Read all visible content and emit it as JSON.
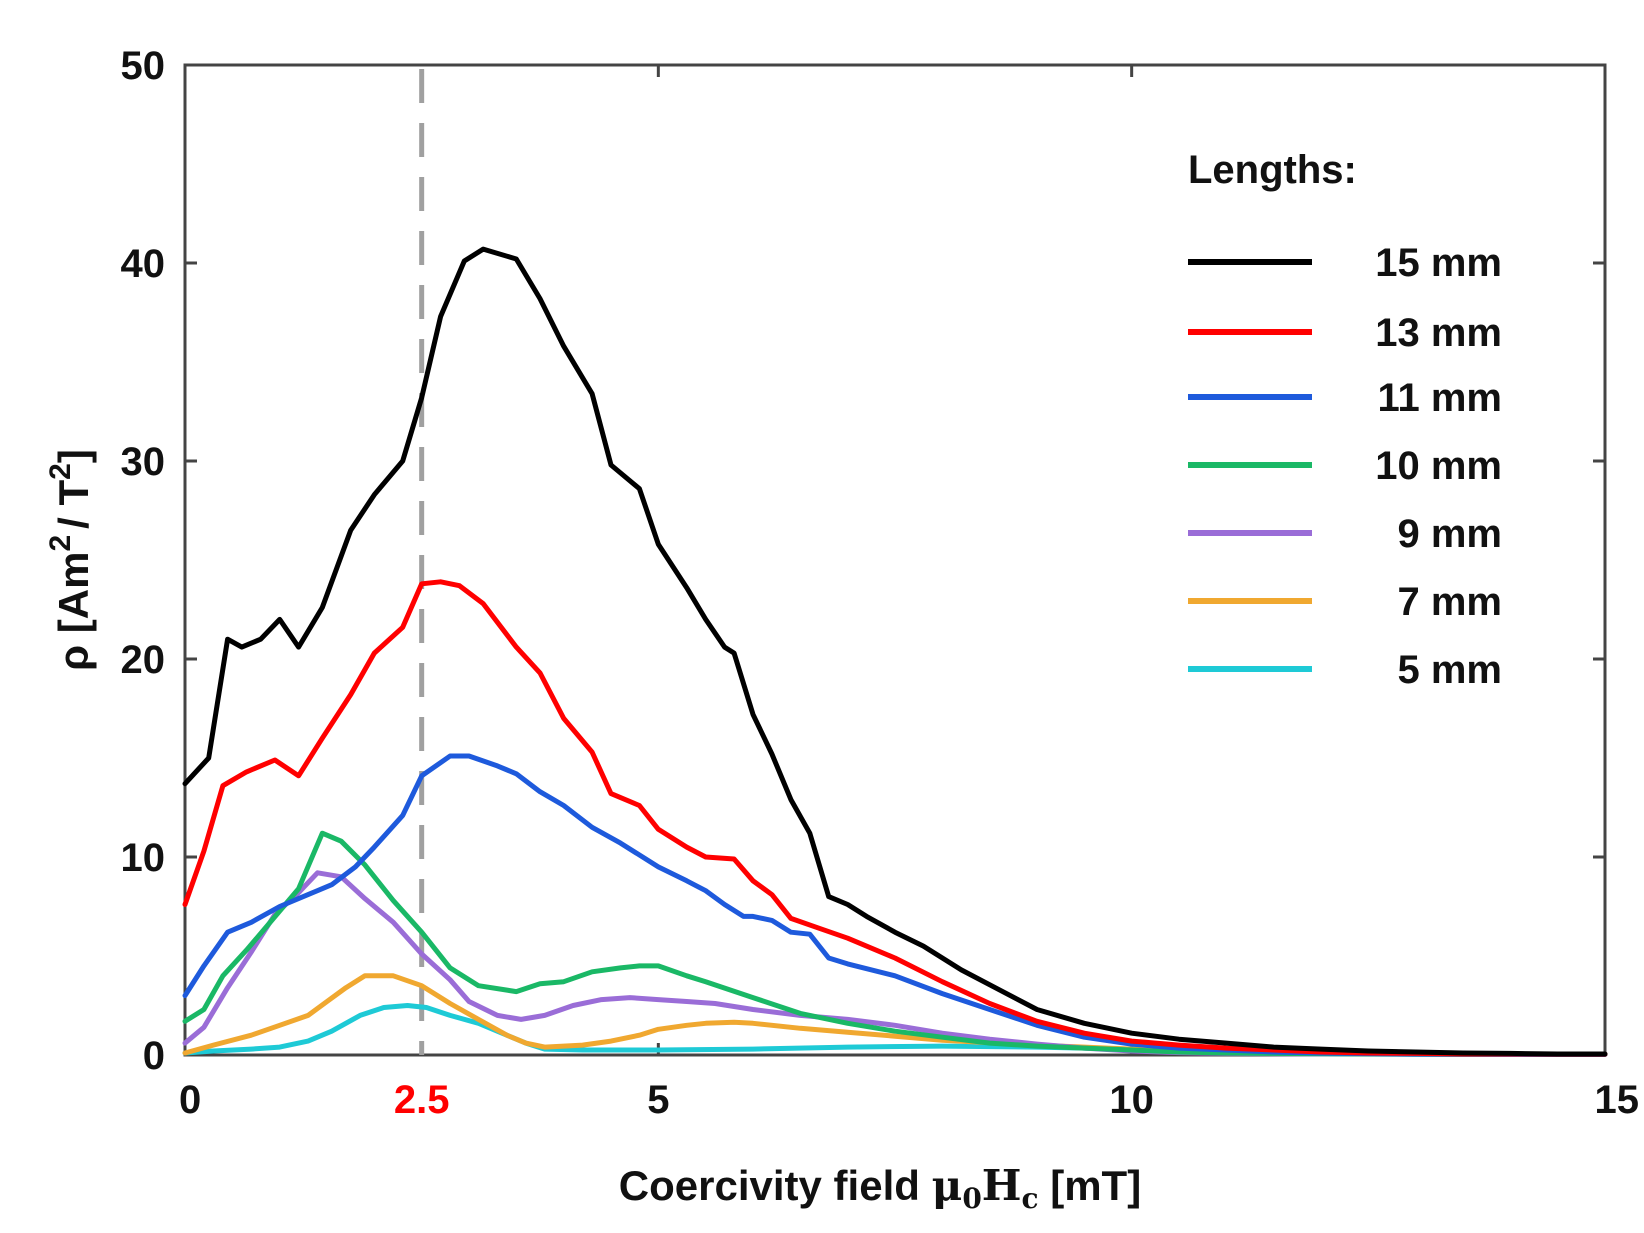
{
  "chart_data": {
    "type": "line",
    "xlabel": "Coercivity field μ0Hc [mT]",
    "xlabel_parts": {
      "prefix": "Coercivity field ",
      "mu": "μ",
      "zero": "0",
      "h": "H",
      "c": "c",
      "suffix": " [mT]"
    },
    "ylabel": "ρ [Am²/T²]",
    "ylabel_parts": {
      "prefix": "ρ [Am",
      "sup1": "2",
      "mid": "/ T",
      "sup2": "2",
      "suffix": "]"
    },
    "xlim": [
      0,
      15
    ],
    "ylim": [
      0,
      50
    ],
    "x_ticks": [
      "0",
      "2.5",
      "5",
      "10",
      "15"
    ],
    "x_tick_values": [
      0,
      2.5,
      5,
      10,
      15
    ],
    "highlighted_tick": "2.5",
    "highlight_color": "#ff0000",
    "y_ticks": [
      "0",
      "10",
      "20",
      "30",
      "40",
      "50"
    ],
    "y_tick_values": [
      0,
      10,
      20,
      30,
      40,
      50
    ],
    "reference_line": {
      "x": 2.5,
      "style": "dashed",
      "color": "#a0a0a0"
    },
    "legend_title": "Lengths:",
    "legend_position": "top-right",
    "series": [
      {
        "name": "15 mm",
        "color": "#000000",
        "x": [
          0,
          0.25,
          0.45,
          0.6,
          0.8,
          1.0,
          1.2,
          1.45,
          1.75,
          2.0,
          2.3,
          2.5,
          2.7,
          2.95,
          3.15,
          3.5,
          3.75,
          4.0,
          4.3,
          4.5,
          4.8,
          5.0,
          5.3,
          5.5,
          5.7,
          5.8,
          6.0,
          6.2,
          6.4,
          6.6,
          6.8,
          7.0,
          7.2,
          7.5,
          7.8,
          8.2,
          8.6,
          9.0,
          9.5,
          10.0,
          10.5,
          11.0,
          11.5,
          12.0,
          12.5,
          13.0,
          13.5,
          14.0,
          14.5,
          15.0
        ],
        "y": [
          13.7,
          15,
          21,
          20.6,
          21,
          22,
          20.6,
          22.6,
          26.5,
          28.3,
          30,
          33.2,
          37.3,
          40.1,
          40.7,
          40.2,
          38.2,
          35.8,
          33.4,
          29.8,
          28.6,
          25.8,
          23.6,
          22,
          20.6,
          20.3,
          17.2,
          15.2,
          12.9,
          11.2,
          8,
          7.6,
          7,
          6.2,
          5.5,
          4.3,
          3.3,
          2.3,
          1.6,
          1.1,
          0.8,
          0.6,
          0.4,
          0.3,
          0.2,
          0.15,
          0.1,
          0.08,
          0.05,
          0.05
        ]
      },
      {
        "name": "13 mm",
        "color": "#ff0000",
        "x": [
          0,
          0.2,
          0.4,
          0.65,
          0.95,
          1.2,
          1.45,
          1.75,
          2.0,
          2.3,
          2.5,
          2.7,
          2.9,
          3.15,
          3.5,
          3.75,
          4.0,
          4.3,
          4.5,
          4.8,
          5.0,
          5.3,
          5.5,
          5.8,
          6.0,
          6.2,
          6.4,
          6.7,
          7.0,
          7.5,
          8.0,
          8.5,
          9.0,
          9.5,
          10.0,
          10.5,
          11.0,
          11.5,
          12.0,
          12.5,
          13.0,
          13.5,
          14.0,
          14.5,
          15.0
        ],
        "y": [
          7.6,
          10.3,
          13.6,
          14.3,
          14.9,
          14.1,
          16,
          18.2,
          20.3,
          21.6,
          23.8,
          23.9,
          23.7,
          22.8,
          20.6,
          19.3,
          17,
          15.3,
          13.2,
          12.6,
          11.4,
          10.5,
          10,
          9.9,
          8.8,
          8.1,
          6.9,
          6.4,
          5.9,
          4.9,
          3.7,
          2.6,
          1.7,
          1.1,
          0.7,
          0.5,
          0.35,
          0.25,
          0.15,
          0.1,
          0.08,
          0.05,
          0.05,
          0.04,
          0.04
        ]
      },
      {
        "name": "11 mm",
        "color": "#1e5adc",
        "x": [
          0,
          0.2,
          0.45,
          0.7,
          1.0,
          1.3,
          1.55,
          1.8,
          2.0,
          2.3,
          2.5,
          2.8,
          3.0,
          3.3,
          3.5,
          3.75,
          4.0,
          4.3,
          4.6,
          5.0,
          5.3,
          5.5,
          5.7,
          5.9,
          6.0,
          6.2,
          6.4,
          6.6,
          6.8,
          7.0,
          7.5,
          8.0,
          8.5,
          9.0,
          9.5,
          10.0,
          10.5,
          11.0,
          11.5,
          12.0,
          12.5,
          13.0,
          13.5,
          14.0,
          14.5,
          15.0
        ],
        "y": [
          3,
          4.5,
          6.2,
          6.7,
          7.5,
          8.1,
          8.6,
          9.5,
          10.5,
          12.1,
          14.1,
          15.1,
          15.1,
          14.6,
          14.2,
          13.3,
          12.6,
          11.5,
          10.7,
          9.5,
          8.8,
          8.3,
          7.6,
          7,
          7,
          6.8,
          6.2,
          6.1,
          4.9,
          4.6,
          4,
          3.1,
          2.3,
          1.5,
          0.9,
          0.55,
          0.35,
          0.25,
          0.15,
          0.1,
          0.07,
          0.05,
          0.04,
          0.03,
          0.03,
          0.03
        ]
      },
      {
        "name": "10 mm",
        "color": "#1ab866",
        "x": [
          0,
          0.2,
          0.4,
          0.65,
          0.9,
          1.2,
          1.45,
          1.65,
          1.9,
          2.2,
          2.5,
          2.8,
          3.1,
          3.5,
          3.75,
          4.0,
          4.3,
          4.6,
          4.8,
          5.0,
          5.3,
          5.5,
          6.0,
          6.5,
          7.0,
          7.5,
          8.0,
          8.5,
          9.0,
          9.5,
          10.0,
          10.5,
          11.0,
          11.5,
          12.0,
          13.0,
          14.0,
          15.0
        ],
        "y": [
          1.7,
          2.3,
          4,
          5.3,
          6.7,
          8.4,
          11.2,
          10.8,
          9.6,
          7.8,
          6.2,
          4.4,
          3.5,
          3.2,
          3.6,
          3.7,
          4.2,
          4.4,
          4.5,
          4.5,
          4,
          3.7,
          2.9,
          2.1,
          1.6,
          1.2,
          0.9,
          0.6,
          0.45,
          0.35,
          0.25,
          0.15,
          0.1,
          0.08,
          0.06,
          0.04,
          0.03,
          0.03
        ]
      },
      {
        "name": "9 mm",
        "color": "#9a6dd7",
        "x": [
          0,
          0.2,
          0.45,
          0.7,
          0.95,
          1.2,
          1.4,
          1.65,
          1.9,
          2.2,
          2.5,
          2.8,
          3.0,
          3.3,
          3.55,
          3.8,
          4.1,
          4.4,
          4.7,
          5.0,
          5.3,
          5.6,
          6.0,
          6.5,
          7.0,
          7.5,
          8.0,
          8.5,
          9.0,
          9.5,
          10.0,
          10.5,
          11.0,
          12.0,
          13.0,
          14.0,
          15.0
        ],
        "y": [
          0.6,
          1.4,
          3.4,
          5.2,
          7.1,
          8.2,
          9.2,
          9,
          7.9,
          6.7,
          5.1,
          3.8,
          2.7,
          2,
          1.8,
          2,
          2.5,
          2.8,
          2.9,
          2.8,
          2.7,
          2.6,
          2.3,
          2,
          1.8,
          1.5,
          1.1,
          0.8,
          0.55,
          0.35,
          0.2,
          0.12,
          0.08,
          0.05,
          0.04,
          0.03,
          0.03
        ]
      },
      {
        "name": "7 mm",
        "color": "#f0a830",
        "x": [
          0,
          0.3,
          0.7,
          1.0,
          1.3,
          1.5,
          1.7,
          1.9,
          2.2,
          2.5,
          2.8,
          3.1,
          3.4,
          3.6,
          3.8,
          4.2,
          4.5,
          4.8,
          5.0,
          5.3,
          5.5,
          5.8,
          6.0,
          6.5,
          7.0,
          7.5,
          8.0,
          9.0,
          10.0,
          11.0,
          12.0,
          13.0,
          14.0,
          15.0
        ],
        "y": [
          0.1,
          0.5,
          1,
          1.5,
          2,
          2.7,
          3.4,
          4,
          4,
          3.5,
          2.6,
          1.8,
          1,
          0.6,
          0.4,
          0.5,
          0.7,
          1,
          1.3,
          1.5,
          1.6,
          1.65,
          1.6,
          1.35,
          1.15,
          0.95,
          0.75,
          0.5,
          0.3,
          0.2,
          0.12,
          0.08,
          0.05,
          0.04
        ]
      },
      {
        "name": "5 mm",
        "color": "#1ecad6",
        "x": [
          0,
          0.3,
          0.7,
          1.0,
          1.3,
          1.55,
          1.85,
          2.1,
          2.35,
          2.55,
          2.8,
          3.1,
          3.4,
          3.6,
          3.8,
          4.2,
          5.0,
          6.0,
          7.0,
          8.0,
          9.0,
          10.0,
          11.0,
          12.0,
          13.0,
          14.0,
          15.0
        ],
        "y": [
          0.1,
          0.2,
          0.3,
          0.4,
          0.7,
          1.2,
          2,
          2.4,
          2.5,
          2.4,
          2,
          1.6,
          1,
          0.6,
          0.3,
          0.25,
          0.25,
          0.3,
          0.4,
          0.45,
          0.4,
          0.3,
          0.2,
          0.12,
          0.08,
          0.05,
          0.04
        ]
      }
    ]
  }
}
